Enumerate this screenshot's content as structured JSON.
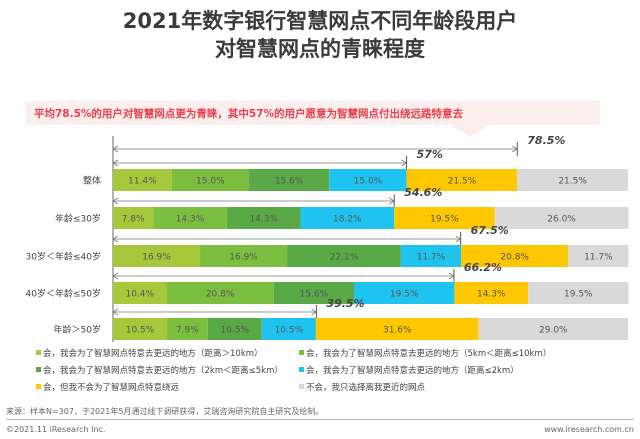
{
  "title_lines": [
    "2021年数字银行智慧网点不同年龄段用户",
    "对智慧网点的青睐程度"
  ],
  "callout": "平均78.5%的用户对智慧网点更为青睐，其中57%的用户愿意为智慧网点付出绕远路特意去",
  "chart_data": {
    "type": "bar",
    "orientation": "horizontal-stacked-100",
    "categories": [
      "整体",
      "年龄≤30岁",
      "30岁＜年龄≤40岁",
      "40岁＜年龄≤50岁",
      "年龄＞50岁"
    ],
    "series": [
      {
        "name": "会，我会为了智慧网点特意去更远的地方（距离＞10km）",
        "color": "#a5c93a",
        "values": [
          11.4,
          7.8,
          16.9,
          10.4,
          10.5
        ]
      },
      {
        "name": "会，我会为了智慧网点特意去更远的地方（5km＜距离≤10km）",
        "color": "#7cbe40",
        "values": [
          15.0,
          14.3,
          16.9,
          20.8,
          7.9
        ]
      },
      {
        "name": "会，我会为了智慧网点特意去更远的地方（2km＜距离≤5km）",
        "color": "#59a946",
        "values": [
          15.6,
          14.3,
          22.1,
          15.6,
          10.5
        ]
      },
      {
        "name": "会，我会为了智慧网点特意去更远的地方（距离≤2km）",
        "color": "#1fc3ef",
        "values": [
          15.0,
          18.2,
          11.7,
          19.5,
          10.5
        ]
      },
      {
        "name": "会，但我不会为了智慧网点特意绕远",
        "color": "#ffc700",
        "values": [
          21.5,
          19.5,
          20.8,
          14.3,
          31.6
        ]
      },
      {
        "name": "不会，我只选择离我更近的网点",
        "color": "#d9d9d9",
        "values": [
          21.5,
          26.0,
          11.7,
          19.5,
          29.0
        ]
      }
    ],
    "overall_bracket": {
      "label": "78.5%",
      "value": 78.5
    },
    "row_brackets": [
      {
        "label": "57%",
        "value": 57
      },
      {
        "label": "54.6%",
        "value": 54.6
      },
      {
        "label": "67.5%",
        "value": 67.5
      },
      {
        "label": "66.2%",
        "value": 66.2
      },
      {
        "label": "39.5%",
        "value": 39.5
      }
    ],
    "xlim": [
      0,
      100
    ],
    "legend_position": "bottom"
  },
  "footer": {
    "source": "来源：样本N=307，于2021年5月通过线下调研获得，艾瑞咨询研究院自主研究及绘制。",
    "copyright": "©2021.11 iResearch Inc.",
    "website": "www.iresearch.com.cn"
  }
}
